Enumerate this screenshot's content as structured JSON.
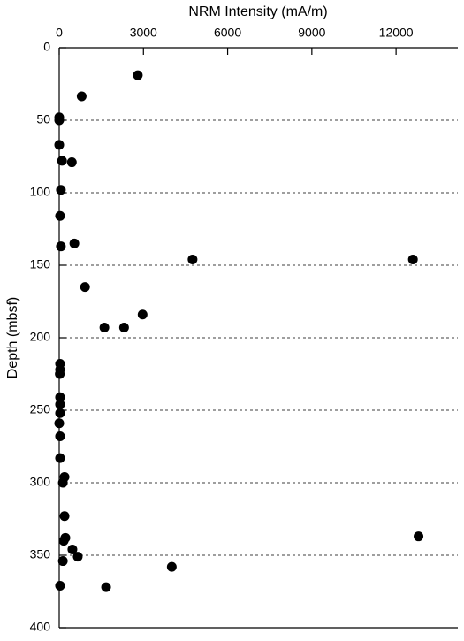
{
  "chart_data": {
    "type": "scatter",
    "title": "NRM Intensity (mA/m)",
    "y_label": "Depth (mbsf)",
    "color": "#000000",
    "x": [
      2800,
      800,
      0,
      0,
      0,
      100,
      450,
      60,
      30,
      60,
      540,
      4750,
      12600,
      920,
      2970,
      1610,
      2310,
      30,
      30,
      20,
      30,
      30,
      30,
      0,
      30,
      30,
      190,
      130,
      190,
      220,
      160,
      12800,
      470,
      660,
      130,
      4010,
      30,
      1670
    ],
    "values": [
      19,
      33.5,
      48,
      50,
      67,
      78,
      79,
      98,
      116,
      137,
      135,
      146,
      146,
      165,
      184,
      193,
      193,
      218,
      222,
      225,
      241,
      246,
      252,
      259,
      268,
      283,
      296,
      300,
      323,
      338,
      340,
      337,
      346,
      351,
      354,
      358,
      371,
      372
    ],
    "xlim": [
      0,
      14200
    ],
    "xticks": [
      0,
      3000,
      6000,
      9000,
      12000
    ],
    "ylim": [
      0,
      400
    ],
    "yticks": [
      0,
      50,
      100,
      150,
      200,
      250,
      300,
      350,
      400
    ],
    "y_inverted": true,
    "grid": true
  }
}
